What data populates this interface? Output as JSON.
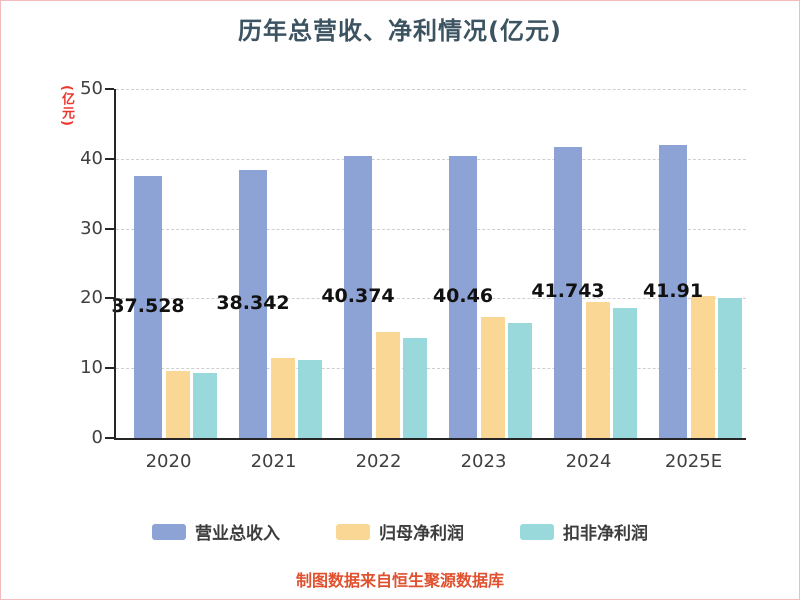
{
  "chart_data": {
    "type": "bar",
    "title": "历年总营收、净利情况(亿元)",
    "ylabel": "(亿元)",
    "categories": [
      "2020",
      "2021",
      "2022",
      "2023",
      "2024",
      "2025E"
    ],
    "series": [
      {
        "name": "营业总收入",
        "color": "#8da2d5",
        "values": [
          37.528,
          38.342,
          40.374,
          40.46,
          41.743,
          41.91
        ],
        "data_labels": [
          "37.528",
          "38.342",
          "40.374",
          "40.46",
          "41.743",
          "41.91"
        ]
      },
      {
        "name": "归母净利润",
        "color": "#fad795",
        "values": [
          9.6,
          11.5,
          15.2,
          17.3,
          19.5,
          20.3
        ]
      },
      {
        "name": "扣非净利润",
        "color": "#99d9db",
        "values": [
          9.3,
          11.2,
          14.3,
          16.5,
          18.6,
          20.0
        ]
      }
    ],
    "ylim": [
      0,
      50
    ],
    "yticks": [
      0,
      10,
      20,
      30,
      40,
      50
    ],
    "grid": "horizontal-dashed",
    "legend_position": "bottom"
  },
  "footer_note": "制图数据来自恒生聚源数据库",
  "colors": {
    "axis_line": "#262626",
    "grid_line": "#cfcfcf",
    "axis_text": "#404040",
    "title_text": "#3c5361",
    "ylabel_text": "#ee352c",
    "footer_text": "#e0512f",
    "frame_border": "#f3bcbc",
    "data_label_text": "#111111"
  }
}
